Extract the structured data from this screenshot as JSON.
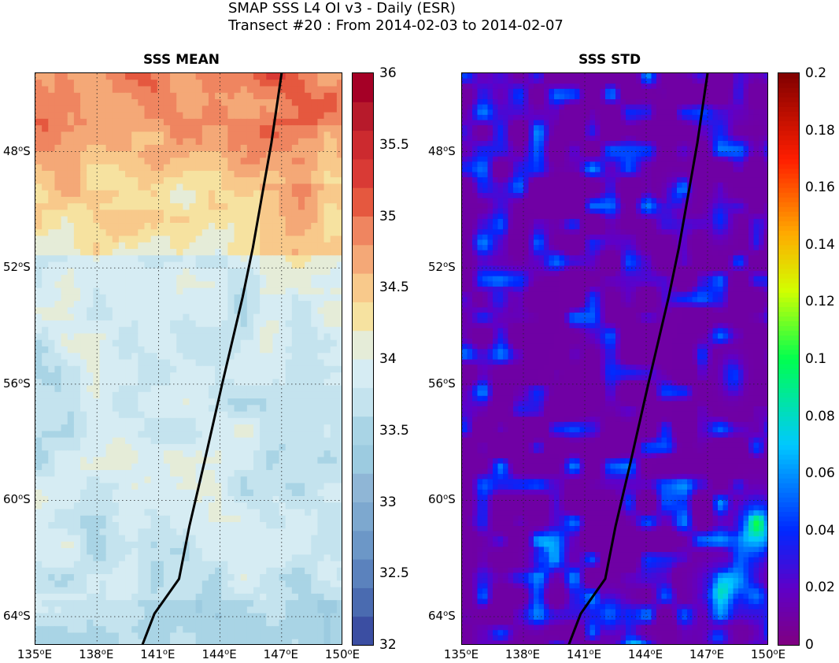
{
  "figure": {
    "title_line1": "SMAP SSS L4 OI v3 - Daily (ESR)",
    "title_line2": "Transect #20 : From 2014-02-03 to 2014-02-07"
  },
  "axes": {
    "lat_ticks": [
      "48",
      "52",
      "56",
      "60",
      "64"
    ],
    "lat_suffix": "S",
    "lon_ticks": [
      "135",
      "138",
      "141",
      "144",
      "147",
      "150"
    ],
    "lon_suffix": "E",
    "degree": "o",
    "grid": true
  },
  "panels": [
    {
      "title": "SSS MEAN",
      "colormap": "RdYlBu_r (discrete)",
      "range": [
        32,
        36
      ],
      "colorbar_ticks": [
        "36",
        "35.5",
        "35",
        "34.5",
        "34",
        "33.5",
        "33",
        "32.5",
        "32"
      ]
    },
    {
      "title": "SSS STD",
      "colormap": "jet-like (purple to dark red)",
      "range": [
        0,
        0.2
      ],
      "colorbar_ticks": [
        "0.2",
        "0.18",
        "0.16",
        "0.14",
        "0.12",
        "0.1",
        "0.08",
        "0.06",
        "0.04",
        "0.02",
        "0"
      ]
    }
  ],
  "transect": {
    "color": "#000000",
    "points_lon_lat": [
      [
        140.2,
        -65.0
      ],
      [
        140.8,
        -63.9
      ],
      [
        142.0,
        -62.7
      ],
      [
        142.5,
        -60.9
      ],
      [
        143.2,
        -58.8
      ],
      [
        144.1,
        -56.0
      ],
      [
        145.1,
        -53.0
      ],
      [
        145.6,
        -51.3
      ],
      [
        146.0,
        -49.7
      ],
      [
        146.5,
        -47.7
      ],
      [
        147.0,
        -45.3
      ]
    ]
  }
}
